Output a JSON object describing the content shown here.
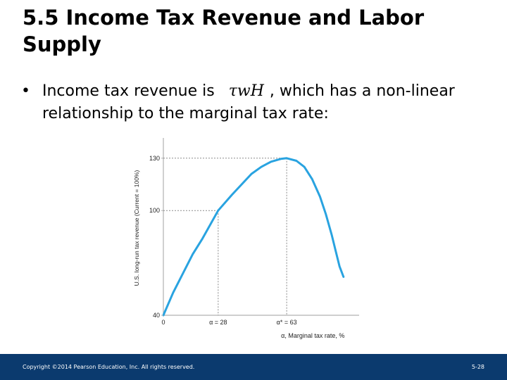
{
  "slide": {
    "title": "5.5 Income Tax Revenue and Labor Supply",
    "bullet_marker": "•",
    "bullet_pre": "Income tax revenue is",
    "bullet_math": "τwH",
    "bullet_post": ", which has a non-linear relationship to the marginal tax rate:",
    "footer_copyright": "Copyright ©2014 Pearson Education, Inc. All rights reserved.",
    "footer_page": "5-28"
  },
  "colors": {
    "curve": "#29a3e0",
    "axis": "#b0b0b0",
    "guide": "#8a8a8a",
    "footer_bg": "#0b3a6e"
  },
  "chart_data": {
    "type": "line",
    "ylabel": "U.S. long-run tax revenue (Current = 100%)",
    "xlabel": "α, Marginal tax rate, %",
    "x_ticks": [
      "0",
      "α = 28",
      "α* = 63"
    ],
    "y_ticks": [
      "40",
      "100",
      "130"
    ],
    "xlim": [
      0,
      100
    ],
    "ylim": [
      40,
      140
    ],
    "grid": false,
    "series": [
      {
        "x": [
          0,
          5,
          10,
          15,
          20,
          28,
          35,
          40,
          45,
          50,
          55,
          60,
          63,
          68,
          72,
          76,
          80,
          83,
          86,
          88,
          90,
          92
        ],
        "y": [
          40,
          53,
          64,
          75,
          84,
          100,
          109,
          115,
          121,
          125,
          128,
          129.6,
          130,
          128.5,
          125,
          118,
          108,
          98,
          86,
          77,
          68,
          62
        ]
      }
    ],
    "guides": [
      {
        "x": 28,
        "y": 100
      },
      {
        "x": 63,
        "y": 130
      }
    ]
  }
}
